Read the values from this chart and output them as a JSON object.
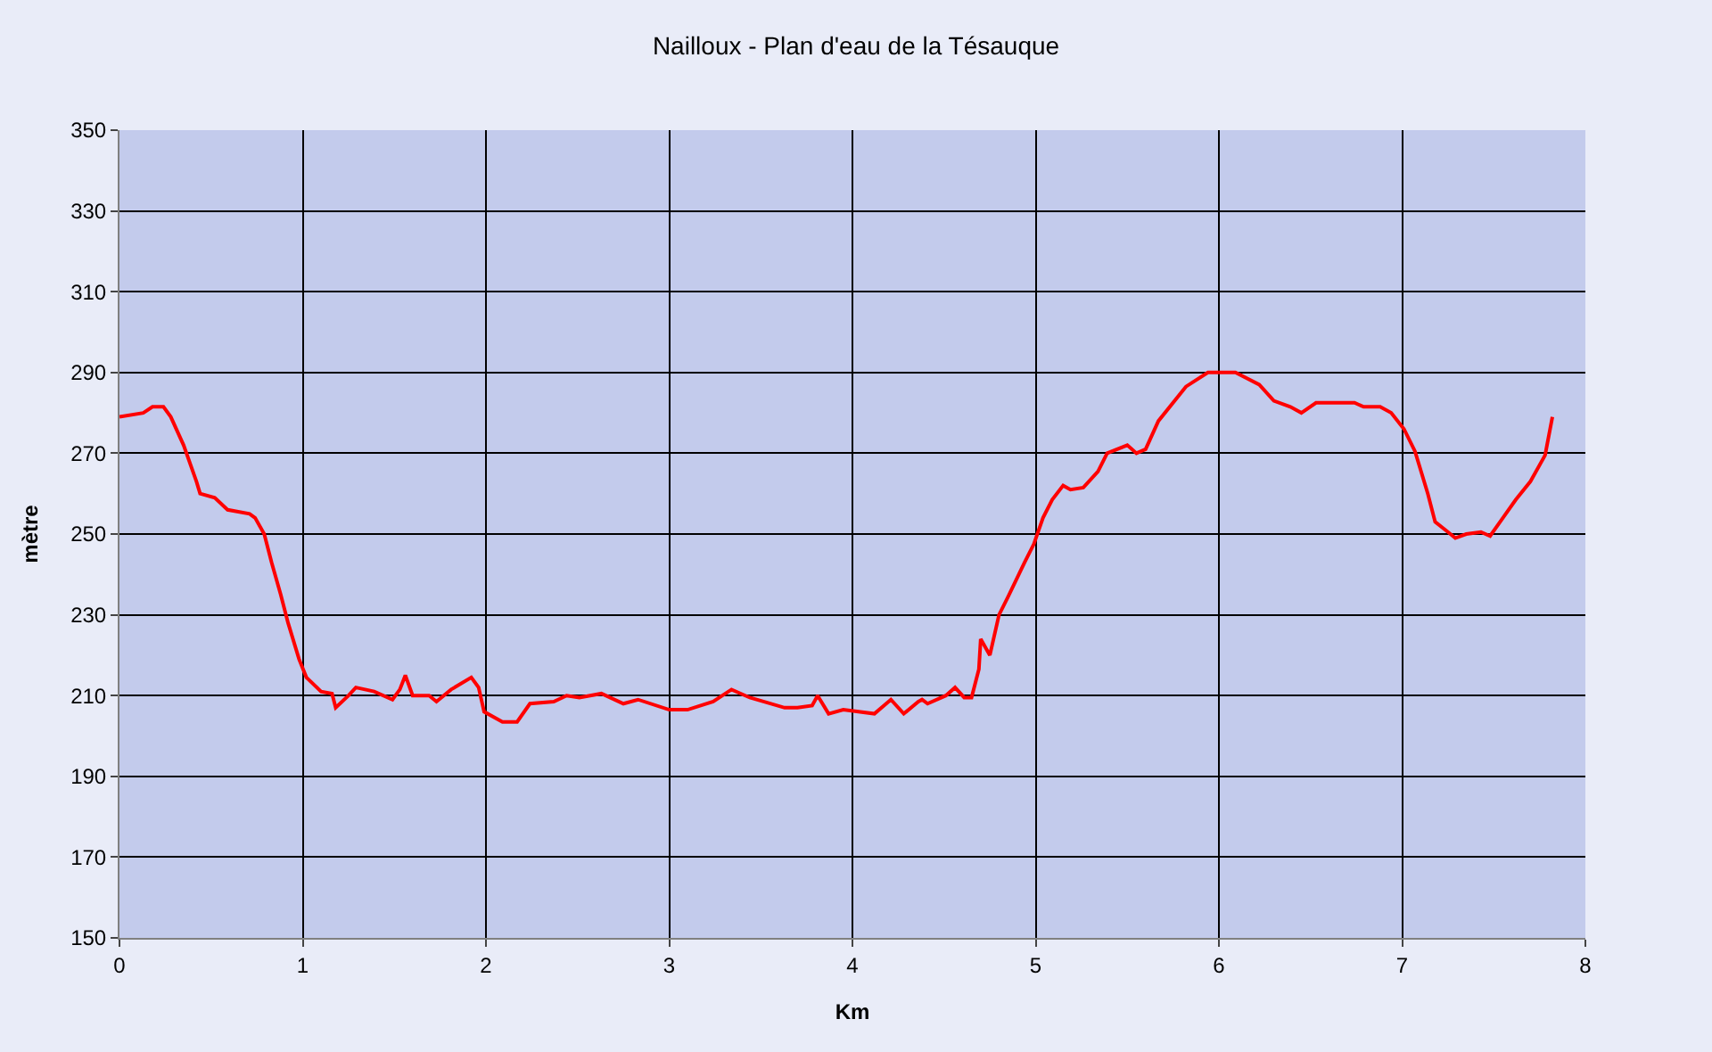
{
  "chart_data": {
    "type": "line",
    "title": "Nailloux - Plan d'eau de la Tésauque",
    "xlabel": "Km",
    "ylabel": "mètre",
    "x": [
      0,
      0.13,
      0.18,
      0.24,
      0.28,
      0.35,
      0.42,
      0.44,
      0.52,
      0.59,
      0.71,
      0.74,
      0.79,
      0.83,
      0.88,
      0.92,
      0.98,
      1.02,
      1.1,
      1.16,
      1.18,
      1.25,
      1.29,
      1.39,
      1.49,
      1.53,
      1.56,
      1.6,
      1.69,
      1.73,
      1.81,
      1.92,
      1.96,
      1.99,
      2.09,
      2.17,
      2.24,
      2.37,
      2.44,
      2.51,
      2.63,
      2.75,
      2.83,
      3.0,
      3.1,
      3.24,
      3.34,
      3.44,
      3.63,
      3.7,
      3.78,
      3.81,
      3.87,
      3.95,
      4.12,
      4.21,
      4.28,
      4.36,
      4.38,
      4.41,
      4.51,
      4.56,
      4.61,
      4.65,
      4.69,
      4.7,
      4.75,
      4.8,
      4.85,
      4.94,
      4.99,
      5.04,
      5.09,
      5.15,
      5.19,
      5.26,
      5.34,
      5.39,
      5.5,
      5.55,
      5.6,
      5.67,
      5.82,
      5.94,
      6.09,
      6.22,
      6.3,
      6.39,
      6.45,
      6.53,
      6.74,
      6.79,
      6.88,
      6.94,
      7.01,
      7.07,
      7.14,
      7.18,
      7.25,
      7.29,
      7.35,
      7.43,
      7.48,
      7.55,
      7.62,
      7.7,
      7.78,
      7.82
    ],
    "series": [
      {
        "color": "#ff0000",
        "values": [
          279,
          280,
          281.5,
          281.5,
          279,
          272,
          263,
          260,
          259,
          256,
          255,
          254,
          250,
          243,
          235,
          228,
          219,
          214.5,
          211,
          210.5,
          207,
          210,
          212,
          211,
          209,
          211.5,
          215,
          210,
          210,
          208.5,
          211.5,
          214.5,
          212,
          206,
          203.5,
          203.5,
          208,
          208.5,
          210,
          209.5,
          210.5,
          208,
          209,
          206.5,
          206.5,
          208.5,
          211.5,
          209.5,
          207,
          207,
          207.5,
          210,
          205.5,
          206.5,
          205.5,
          209,
          205.5,
          208.5,
          209,
          208,
          210,
          212,
          209.5,
          209.5,
          216.5,
          224,
          220,
          230,
          234.5,
          243,
          247.5,
          254,
          258.5,
          262,
          261,
          261.5,
          265.5,
          270,
          272,
          270,
          271,
          278,
          286.5,
          290,
          290,
          287,
          283,
          281.5,
          280,
          282.5,
          282.5,
          281.5,
          281.5,
          280,
          276,
          270.5,
          260,
          253,
          250.5,
          249,
          250,
          250.5,
          249.5,
          254,
          258.5,
          263,
          269.5,
          279
        ]
      }
    ],
    "xlim": [
      0,
      8
    ],
    "xticks": [
      0,
      1,
      2,
      3,
      4,
      5,
      6,
      7,
      8
    ],
    "ylim": [
      150,
      350
    ],
    "yticks": [
      150,
      170,
      190,
      210,
      230,
      250,
      270,
      290,
      310,
      330,
      350
    ],
    "grid": true,
    "marker": "none",
    "line_style": "solid"
  }
}
